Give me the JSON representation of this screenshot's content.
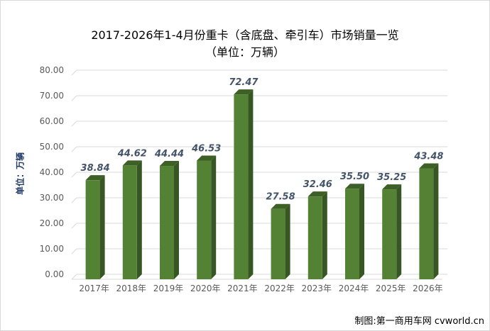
{
  "title": "2017-2026年1-4月份重卡（含底盘、牵引车）市场销量一览",
  "subtitle": "（单位：万辆）",
  "credit": "制图:第一商用车网 cvworld.cn",
  "colors": {
    "bar_front": "#548235",
    "bar_side": "#375623",
    "bar_top": "#3d6026",
    "grid": "#d9d9d9",
    "tick_text": "#595959",
    "value_label": "#44546a",
    "axis_label": "#1f3864"
  },
  "chart_data": {
    "type": "bar",
    "title": "2017-2026年1-4月份重卡（含底盘、牵引车）市场销量一览",
    "subtitle": "（单位：万辆）",
    "xlabel": "",
    "ylabel": "单位：万辆",
    "categories": [
      "2017年",
      "2018年",
      "2019年",
      "2020年",
      "2021年",
      "2022年",
      "2023年",
      "2024年",
      "2025年",
      "2026年"
    ],
    "values": [
      38.84,
      44.62,
      44.44,
      46.53,
      72.47,
      27.58,
      32.46,
      35.5,
      35.25,
      43.48
    ],
    "value_labels": [
      "38.84",
      "44.62",
      "44.44",
      "46.53",
      "72.47",
      "27.58",
      "32.46",
      "35.50",
      "35.25",
      "43.48"
    ],
    "ylim": [
      0,
      80
    ],
    "yticks": [
      "0.00",
      "10.00",
      "20.00",
      "30.00",
      "40.00",
      "50.00",
      "60.00",
      "70.00",
      "80.00"
    ],
    "grid": true,
    "legend": "none",
    "style": "3d-bar"
  }
}
